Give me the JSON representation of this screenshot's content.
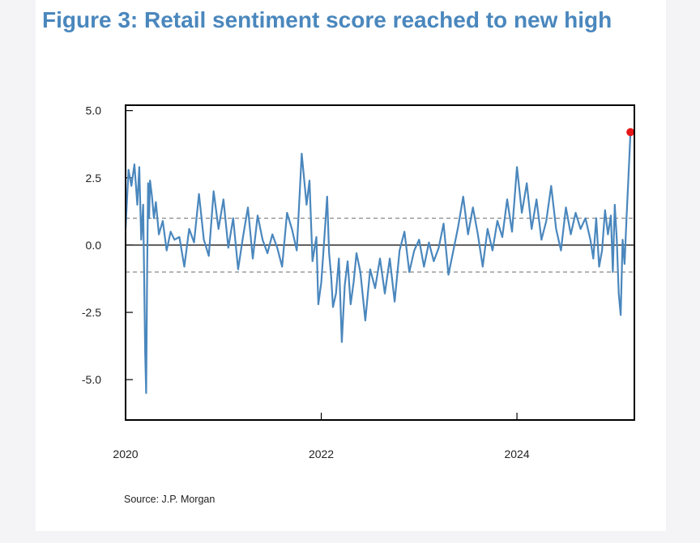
{
  "chart_data": {
    "type": "line",
    "title": "Figure 3: Retail sentiment score reached to new high",
    "xlabel": "",
    "ylabel": "",
    "xlim": [
      2020.0,
      2025.2
    ],
    "ylim": [
      -6.5,
      5.2
    ],
    "y_ticks": [
      5.0,
      2.5,
      0.0,
      -2.5,
      -5.0
    ],
    "y_tick_labels": [
      "5.0",
      "2.5",
      "0.0",
      "-2.5",
      "-5.0"
    ],
    "x_ticks": [
      2020,
      2022,
      2024
    ],
    "x_tick_labels": [
      "2020",
      "2022",
      "2024"
    ],
    "reference_lines": [
      {
        "y": 0.0,
        "style": "solid"
      },
      {
        "y": 1.0,
        "style": "dashed"
      },
      {
        "y": -1.0,
        "style": "dashed"
      }
    ],
    "series": [
      {
        "name": "Retail sentiment score",
        "color": "#4a87bd",
        "x": [
          2020.0,
          2020.03,
          2020.06,
          2020.09,
          2020.12,
          2020.14,
          2020.16,
          2020.18,
          2020.2,
          2020.21,
          2020.22,
          2020.23,
          2020.24,
          2020.25,
          2020.27,
          2020.29,
          2020.31,
          2020.34,
          2020.38,
          2020.42,
          2020.46,
          2020.5,
          2020.55,
          2020.6,
          2020.65,
          2020.7,
          2020.75,
          2020.8,
          2020.85,
          2020.9,
          2020.95,
          2021.0,
          2021.05,
          2021.1,
          2021.15,
          2021.2,
          2021.25,
          2021.3,
          2021.35,
          2021.4,
          2021.45,
          2021.5,
          2021.55,
          2021.6,
          2021.65,
          2021.7,
          2021.75,
          2021.8,
          2021.85,
          2021.88,
          2021.91,
          2021.95,
          2021.97,
          2022.0,
          2022.03,
          2022.06,
          2022.08,
          2022.1,
          2022.12,
          2022.15,
          2022.18,
          2022.21,
          2022.24,
          2022.27,
          2022.3,
          2022.33,
          2022.36,
          2022.4,
          2022.45,
          2022.5,
          2022.55,
          2022.6,
          2022.65,
          2022.7,
          2022.75,
          2022.8,
          2022.85,
          2022.9,
          2022.95,
          2023.0,
          2023.05,
          2023.1,
          2023.15,
          2023.2,
          2023.25,
          2023.3,
          2023.35,
          2023.4,
          2023.45,
          2023.5,
          2023.55,
          2023.6,
          2023.65,
          2023.7,
          2023.75,
          2023.8,
          2023.85,
          2023.9,
          2023.95,
          2024.0,
          2024.05,
          2024.1,
          2024.15,
          2024.2,
          2024.25,
          2024.3,
          2024.35,
          2024.4,
          2024.45,
          2024.5,
          2024.55,
          2024.6,
          2024.65,
          2024.7,
          2024.75,
          2024.78,
          2024.81,
          2024.84,
          2024.87,
          2024.9,
          2024.93,
          2024.96,
          2024.98,
          2025.0,
          2025.02,
          2025.04,
          2025.06,
          2025.08,
          2025.1,
          2025.12,
          2025.14,
          2025.16
        ],
        "values": [
          0.6,
          2.8,
          2.2,
          3.0,
          1.5,
          2.9,
          0.2,
          1.5,
          -4.0,
          -5.5,
          -1.0,
          2.3,
          1.0,
          2.4,
          1.8,
          1.0,
          1.6,
          0.4,
          0.9,
          -0.2,
          0.5,
          0.2,
          0.3,
          -0.8,
          0.6,
          0.1,
          1.9,
          0.2,
          -0.4,
          2.0,
          0.6,
          1.7,
          -0.1,
          1.0,
          -0.9,
          0.3,
          1.4,
          -0.5,
          1.1,
          0.2,
          -0.3,
          0.4,
          -0.1,
          -0.8,
          1.2,
          0.6,
          -0.2,
          3.4,
          1.5,
          2.4,
          -0.6,
          0.3,
          -2.2,
          -1.4,
          0.2,
          1.8,
          -0.3,
          -1.1,
          -2.3,
          -1.8,
          -0.5,
          -3.6,
          -1.5,
          -0.6,
          -2.2,
          -1.4,
          -0.3,
          -1.0,
          -2.8,
          -0.9,
          -1.6,
          -0.5,
          -1.8,
          -0.5,
          -2.1,
          -0.2,
          0.5,
          -1.0,
          -0.2,
          0.2,
          -0.8,
          0.1,
          -0.6,
          -0.1,
          0.8,
          -1.1,
          -0.2,
          0.7,
          1.8,
          0.4,
          1.4,
          0.4,
          -0.8,
          0.6,
          -0.2,
          0.9,
          0.3,
          1.7,
          0.5,
          2.9,
          1.2,
          2.3,
          0.6,
          1.7,
          0.2,
          0.9,
          2.2,
          0.6,
          -0.2,
          1.4,
          0.4,
          1.2,
          0.6,
          1.0,
          0.2,
          -0.5,
          1.0,
          -0.8,
          -0.2,
          1.3,
          0.4,
          1.1,
          -1.0,
          1.5,
          0.2,
          -1.8,
          -2.6,
          0.2,
          -0.7,
          1.0,
          2.6,
          4.2
        ]
      }
    ],
    "highlight_point": {
      "x": 2025.16,
      "y": 4.2,
      "color": "#e61717"
    },
    "source": "Source: J.P. Morgan"
  }
}
